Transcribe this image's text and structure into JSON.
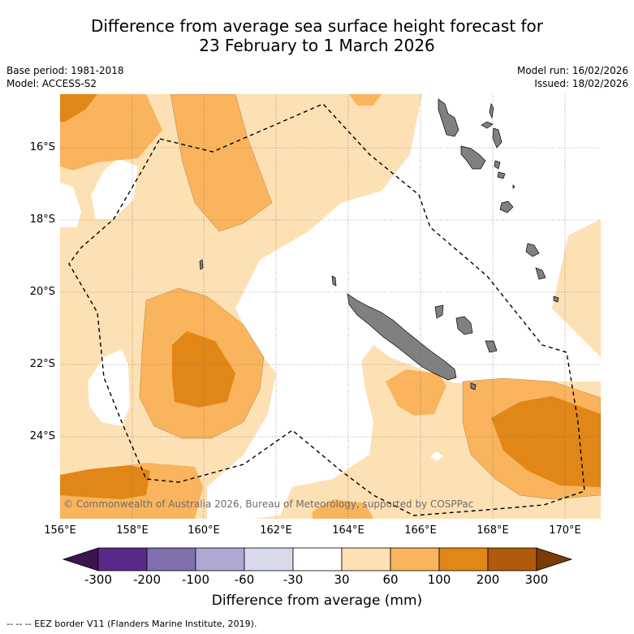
{
  "title": {
    "line1": "Difference from average sea surface height forecast for",
    "line2": "23 February to 1 March 2026"
  },
  "meta": {
    "base_period": "Base period: 1981-2018",
    "model": "Model: ACCESS-S2",
    "model_run": "Model run: 16/02/2026",
    "issued": "Issued: 18/02/2026"
  },
  "axes": {
    "longitudes": [
      "156°E",
      "158°E",
      "160°E",
      "162°E",
      "164°E",
      "166°E",
      "168°E",
      "170°E"
    ],
    "latitudes": [
      "16°S",
      "18°S",
      "20°S",
      "22°S",
      "24°S"
    ]
  },
  "copyright": "© Commonwealth of Australia 2026, Bureau of Meteorology, supported by COSPPac",
  "colorbar": {
    "labels": [
      "-300",
      "-200",
      "-100",
      "-60",
      "-30",
      "30",
      "60",
      "100",
      "200",
      "300"
    ],
    "colors": [
      "#3b1450",
      "#5a2a8a",
      "#8070ad",
      "#b0a8d2",
      "#d9d9ec",
      "#ffffff",
      "#fde0b4",
      "#f9b45d",
      "#e08717",
      "#b05a0c",
      "#7a3b05"
    ],
    "title": "Difference from average (mm)"
  },
  "legend_footnote": "--  --  -- EEZ border V11 (Flanders Marine Institute, 2019).",
  "style": {
    "land_color": "#808080",
    "grid_color": "#666666"
  }
}
